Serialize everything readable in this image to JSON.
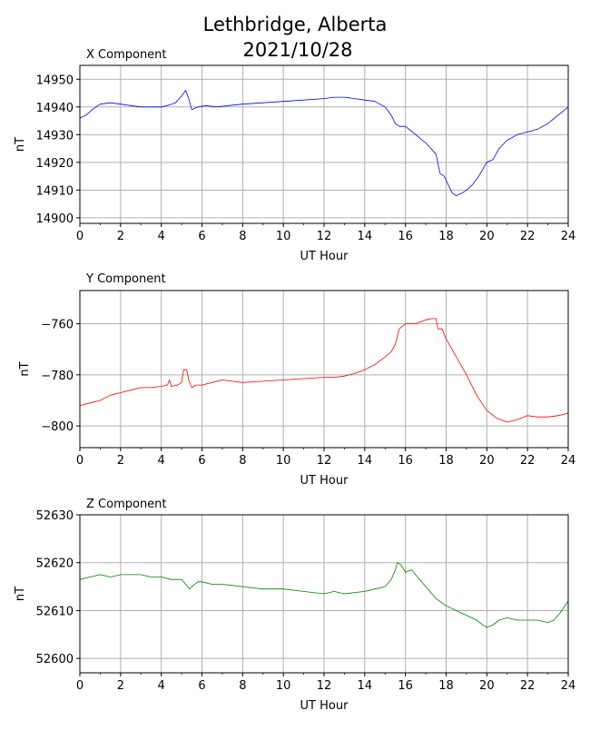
{
  "figure": {
    "title_line1": "Lethbridge, Alberta",
    "title_line2": "2021/10/28"
  },
  "chart_data": [
    {
      "type": "line",
      "title": "X Component",
      "xlabel": "UT Hour",
      "ylabel": "nT",
      "xlim": [
        0,
        24
      ],
      "ylim": [
        14898,
        14955
      ],
      "xticks": [
        0,
        2,
        4,
        6,
        8,
        10,
        12,
        14,
        16,
        18,
        20,
        22,
        24
      ],
      "yticks": [
        14900,
        14910,
        14920,
        14930,
        14940,
        14950
      ],
      "ytick_labels": [
        "14900",
        "14910",
        "14920",
        "14930",
        "14940",
        "14950"
      ],
      "grid": true,
      "color": "#0000ff",
      "x": [
        0,
        0.3,
        0.6,
        1.0,
        1.5,
        2.0,
        2.5,
        3.0,
        3.5,
        4.0,
        4.3,
        4.7,
        5.0,
        5.2,
        5.35,
        5.5,
        5.8,
        6.2,
        6.7,
        7.3,
        8.0,
        9.0,
        10.0,
        11.0,
        12.0,
        12.5,
        13.0,
        13.5,
        14.0,
        14.5,
        15.0,
        15.3,
        15.5,
        15.7,
        16.0,
        16.5,
        17.0,
        17.5,
        17.7,
        17.9,
        18.1,
        18.3,
        18.5,
        18.8,
        19.0,
        19.3,
        19.6,
        20.0,
        20.3,
        20.6,
        21.0,
        21.5,
        22.0,
        22.5,
        23.0,
        23.5,
        24.0
      ],
      "y": [
        14936,
        14937,
        14939,
        14941,
        14941.5,
        14941,
        14940.5,
        14940,
        14940,
        14940,
        14940.5,
        14941.5,
        14944,
        14946,
        14943,
        14939,
        14940,
        14940.5,
        14940,
        14940.5,
        14941,
        14941.5,
        14942,
        14942.5,
        14943,
        14943.5,
        14943.5,
        14943,
        14942.5,
        14942,
        14940,
        14937,
        14934,
        14933,
        14933,
        14930,
        14927,
        14923,
        14916,
        14915,
        14912,
        14909,
        14908,
        14909,
        14910,
        14912,
        14915,
        14920,
        14921,
        14925,
        14928,
        14930,
        14931,
        14932,
        14934,
        14937,
        14940
      ]
    },
    {
      "type": "line",
      "title": "Y Component",
      "xlabel": "UT Hour",
      "ylabel": "nT",
      "xlim": [
        0,
        24
      ],
      "ylim": [
        -808.5,
        -747
      ],
      "xticks": [
        0,
        2,
        4,
        6,
        8,
        10,
        12,
        14,
        16,
        18,
        20,
        22,
        24
      ],
      "yticks": [
        -800,
        -780,
        -760
      ],
      "ytick_labels": [
        "−800",
        "−780",
        "−760"
      ],
      "grid": true,
      "color": "#ff0000",
      "x": [
        0,
        0.5,
        1.0,
        1.5,
        2.0,
        2.5,
        3.0,
        3.5,
        4.0,
        4.3,
        4.4,
        4.5,
        4.8,
        5.0,
        5.1,
        5.25,
        5.35,
        5.5,
        5.7,
        6.0,
        6.5,
        7.0,
        8.0,
        9.0,
        10.0,
        11.0,
        12.0,
        12.5,
        13.0,
        13.5,
        14.0,
        14.5,
        15.0,
        15.3,
        15.5,
        15.7,
        16.0,
        16.5,
        17.0,
        17.3,
        17.5,
        17.6,
        17.8,
        18.0,
        18.5,
        19.0,
        19.5,
        20.0,
        20.5,
        21.0,
        21.5,
        22.0,
        22.5,
        23.0,
        23.5,
        24.0
      ],
      "y": [
        -792,
        -791,
        -790,
        -788,
        -787,
        -786,
        -785,
        -785,
        -784.5,
        -784,
        -782,
        -784.5,
        -784,
        -783,
        -778,
        -778,
        -782,
        -785,
        -784,
        -784,
        -783,
        -782,
        -783,
        -782.5,
        -782,
        -781.5,
        -781,
        -781,
        -780.5,
        -779.5,
        -778,
        -776,
        -773,
        -771,
        -768,
        -762,
        -760,
        -760,
        -758.5,
        -758,
        -758,
        -762,
        -762,
        -766,
        -773,
        -780,
        -788,
        -794,
        -797,
        -798.5,
        -797.5,
        -796,
        -796.5,
        -796.5,
        -796,
        -795
      ]
    },
    {
      "type": "line",
      "title": "Z Component",
      "xlabel": "UT Hour",
      "ylabel": "nT",
      "xlim": [
        0,
        24
      ],
      "ylim": [
        52597,
        52630
      ],
      "xticks": [
        0,
        2,
        4,
        6,
        8,
        10,
        12,
        14,
        16,
        18,
        20,
        22,
        24
      ],
      "yticks": [
        52600,
        52610,
        52620,
        52630
      ],
      "ytick_labels": [
        "52600",
        "52610",
        "52620",
        "52630"
      ],
      "grid": true,
      "color": "#008000",
      "x": [
        0,
        0.5,
        1.0,
        1.5,
        2.0,
        2.5,
        3.0,
        3.5,
        4.0,
        4.5,
        5.0,
        5.2,
        5.4,
        5.5,
        5.8,
        6.0,
        6.5,
        7.0,
        8.0,
        9.0,
        10.0,
        11.0,
        12.0,
        12.5,
        13.0,
        14.0,
        14.5,
        15.0,
        15.3,
        15.5,
        15.6,
        15.8,
        16.0,
        16.3,
        16.6,
        17.0,
        17.5,
        18.0,
        18.5,
        19.0,
        19.5,
        19.8,
        20.0,
        20.3,
        20.6,
        21.0,
        21.5,
        22.0,
        22.5,
        23.0,
        23.3,
        23.6,
        24.0
      ],
      "y": [
        52616.5,
        52617,
        52617.5,
        52617,
        52617.5,
        52617.5,
        52617.5,
        52617,
        52617,
        52616.5,
        52616.5,
        52615.5,
        52614.5,
        52615,
        52616,
        52616,
        52615.5,
        52615.5,
        52615,
        52614.5,
        52614.5,
        52614,
        52613.5,
        52614,
        52613.5,
        52614,
        52614.5,
        52615,
        52616.5,
        52618.5,
        52620,
        52619.5,
        52618,
        52618.5,
        52617,
        52615,
        52612.5,
        52611,
        52610,
        52609,
        52608,
        52607,
        52606.5,
        52607,
        52608,
        52608.5,
        52608,
        52608,
        52608,
        52607.5,
        52608,
        52609.5,
        52612
      ]
    }
  ]
}
